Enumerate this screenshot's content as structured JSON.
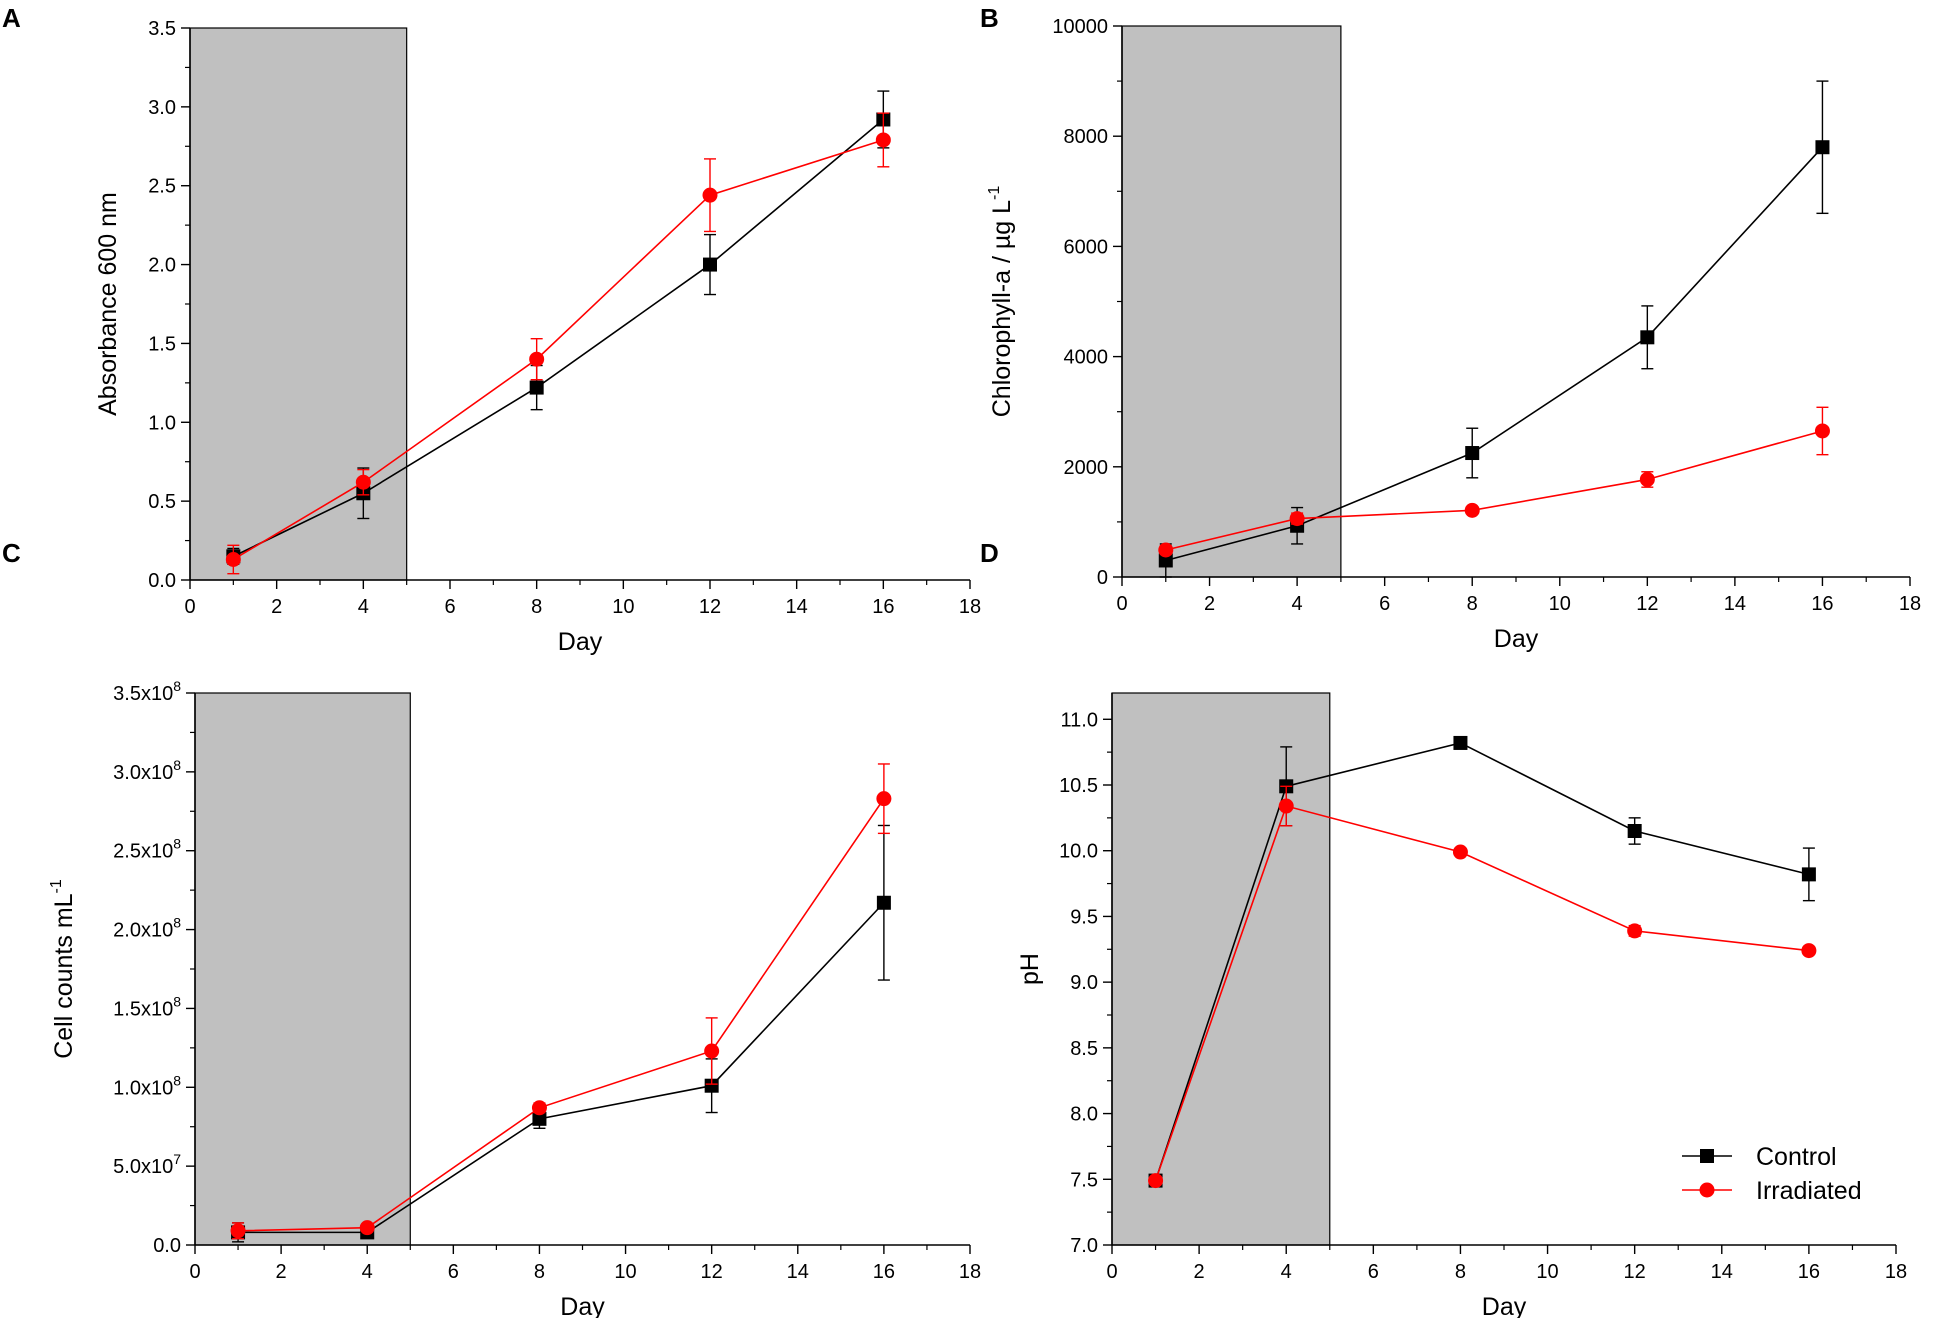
{
  "legend": {
    "control_label": "Control",
    "irradiated_label": "Irradiated",
    "control_color": "#000000",
    "irradiated_color": "#ff0000"
  },
  "chart_data": [
    {
      "panel": "A",
      "type": "line",
      "xlabel": "Day",
      "ylabel": "Absorbance 600 nm",
      "xlim": [
        0,
        18
      ],
      "ylim": [
        0,
        3.5
      ],
      "xticks": [
        0,
        2,
        4,
        6,
        8,
        10,
        12,
        14,
        16,
        18
      ],
      "yticks": [
        0.0,
        0.5,
        1.0,
        1.5,
        2.0,
        2.5,
        3.0,
        3.5
      ],
      "ytick_labels": [
        "0.0",
        "0.5",
        "1.0",
        "1.5",
        "2.0",
        "2.5",
        "3.0",
        "3.5"
      ],
      "shade_x": [
        0,
        5
      ],
      "series": [
        {
          "name": "Control",
          "color": "#000000",
          "marker": "square",
          "x": [
            1,
            4,
            8,
            12,
            16
          ],
          "y": [
            0.15,
            0.55,
            1.22,
            2.0,
            2.92
          ],
          "err": [
            0.05,
            0.16,
            0.14,
            0.19,
            0.18
          ]
        },
        {
          "name": "Irradiated",
          "color": "#ff0000",
          "marker": "circle",
          "x": [
            1,
            4,
            8,
            12,
            16
          ],
          "y": [
            0.13,
            0.62,
            1.4,
            2.44,
            2.79
          ],
          "err": [
            0.09,
            0.08,
            0.13,
            0.23,
            0.17
          ]
        }
      ]
    },
    {
      "panel": "B",
      "type": "line",
      "xlabel": "Day",
      "ylabel": "Chlorophyll-a / µg L",
      "ylabel_sup": "-1",
      "xlim": [
        0,
        18
      ],
      "ylim": [
        0,
        10000
      ],
      "xticks": [
        0,
        2,
        4,
        6,
        8,
        10,
        12,
        14,
        16,
        18
      ],
      "yticks": [
        0,
        2000,
        4000,
        6000,
        8000,
        10000
      ],
      "ytick_labels": [
        "0",
        "2000",
        "4000",
        "6000",
        "8000",
        "10000"
      ],
      "shade_x": [
        0,
        5
      ],
      "series": [
        {
          "name": "Control",
          "color": "#000000",
          "marker": "square",
          "x": [
            1,
            4,
            8,
            12,
            16
          ],
          "y": [
            300,
            930,
            2250,
            4350,
            7800
          ],
          "err": [
            300,
            330,
            450,
            570,
            1200
          ]
        },
        {
          "name": "Irradiated",
          "color": "#ff0000",
          "marker": "circle",
          "x": [
            1,
            4,
            8,
            12,
            16
          ],
          "y": [
            490,
            1060,
            1210,
            1770,
            2650
          ],
          "err": [
            80,
            100,
            50,
            140,
            430
          ]
        }
      ]
    },
    {
      "panel": "C",
      "type": "line",
      "xlabel": "Day",
      "ylabel": "Cell counts mL",
      "ylabel_sup": "-1",
      "xlim": [
        0,
        18
      ],
      "ylim": [
        0,
        350000000
      ],
      "xticks": [
        0,
        2,
        4,
        6,
        8,
        10,
        12,
        14,
        16,
        18
      ],
      "yticks": [
        0,
        50000000,
        100000000,
        150000000,
        200000000,
        250000000,
        300000000,
        350000000
      ],
      "ytick_mantissa": [
        "0.0",
        "5.0x10",
        "1.0x10",
        "1.5x10",
        "2.0x10",
        "2.5x10",
        "3.0x10",
        "3.5x10"
      ],
      "ytick_exp": [
        "",
        "7",
        "8",
        "8",
        "8",
        "8",
        "8",
        "8"
      ],
      "shade_x": [
        0,
        5
      ],
      "series": [
        {
          "name": "Control",
          "color": "#000000",
          "marker": "square",
          "x": [
            1,
            4,
            8,
            12,
            16
          ],
          "y": [
            8000000,
            8000000,
            80000000,
            101000000,
            217000000
          ],
          "err": [
            6000000,
            2000000,
            6000000,
            17000000,
            49000000
          ]
        },
        {
          "name": "Irradiated",
          "color": "#ff0000",
          "marker": "circle",
          "x": [
            1,
            4,
            8,
            12,
            16
          ],
          "y": [
            9000000,
            11000000,
            87000000,
            123000000,
            283000000
          ],
          "err": [
            5000000,
            2000000,
            3000000,
            21000000,
            22000000
          ]
        }
      ]
    },
    {
      "panel": "D",
      "type": "line",
      "xlabel": "Day",
      "ylabel": "pH",
      "xlim": [
        0,
        18
      ],
      "ylim": [
        7.0,
        11.2
      ],
      "xticks": [
        0,
        2,
        4,
        6,
        8,
        10,
        12,
        14,
        16,
        18
      ],
      "yticks": [
        7.0,
        7.5,
        8.0,
        8.5,
        9.0,
        9.5,
        10.0,
        10.5,
        11.0
      ],
      "ytick_labels": [
        "7.0",
        "7.5",
        "8.0",
        "8.5",
        "9.0",
        "9.5",
        "10.0",
        "10.5",
        "11.0"
      ],
      "shade_x": [
        0,
        5
      ],
      "legend_position": "bottom-right",
      "series": [
        {
          "name": "Control",
          "color": "#000000",
          "marker": "square",
          "x": [
            1,
            4,
            8,
            12,
            16
          ],
          "y": [
            7.49,
            10.49,
            10.82,
            10.15,
            9.82
          ],
          "err": [
            0.0,
            0.3,
            0.0,
            0.1,
            0.2
          ]
        },
        {
          "name": "Irradiated",
          "color": "#ff0000",
          "marker": "circle",
          "x": [
            1,
            4,
            8,
            12,
            16
          ],
          "y": [
            7.49,
            10.34,
            9.99,
            9.39,
            9.24
          ],
          "err": [
            0.0,
            0.15,
            0.0,
            0.04,
            0.0
          ]
        }
      ]
    }
  ]
}
